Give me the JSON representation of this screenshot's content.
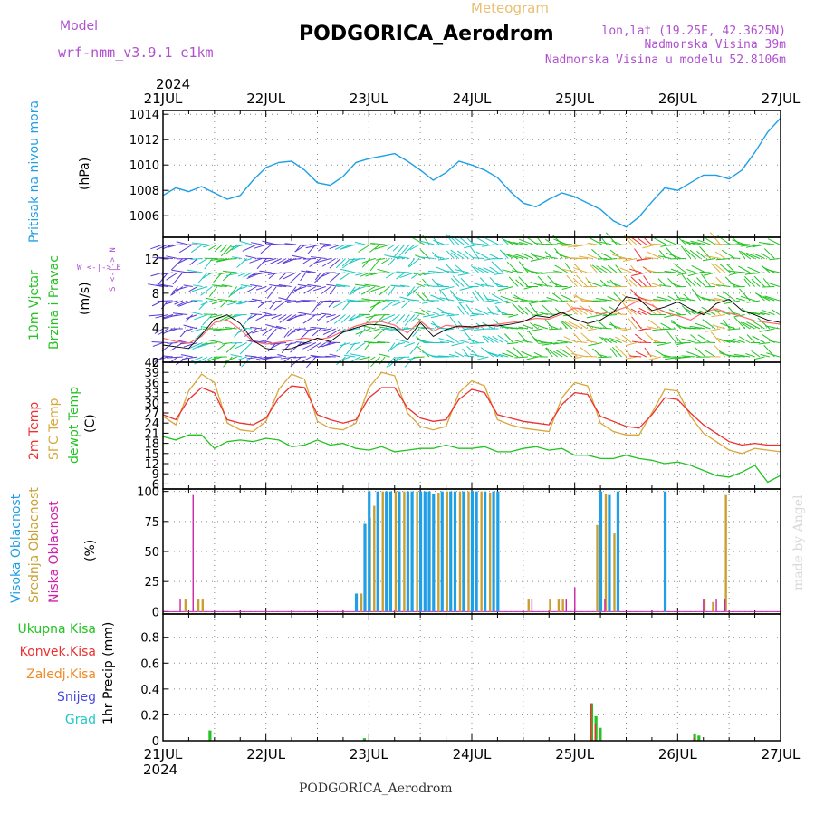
{
  "header": {
    "model_label": "Model",
    "model_name": "wrf-nmm_v3.9.1  e1km",
    "product": "Meteogram",
    "station": "PODGORICA_Aerodrom",
    "coords": "lon,lat (19.25E, 42.3625N)",
    "altitude": "Nadmorska Visina 39m",
    "model_altitude": "Nadmorska Visina u modelu 52.8106m",
    "year_top": "2024",
    "year_bottom": "2024",
    "footer_station": "PODGORICA_Aerodrom",
    "credit": "made by Angel"
  },
  "colors": {
    "pressure": "#1e9fe6",
    "wind_label": "#22c322",
    "t2m": "#ee3030",
    "sfc": "#d8a83c",
    "dew": "#22c322",
    "cloud_high": "#1e9fe6",
    "cloud_mid": "#c8a032",
    "cloud_low": "#cc22aa",
    "precip_total": "#22c322",
    "precip_conv": "#ee3030",
    "precip_frozen": "#f08a28",
    "precip_snow": "#4848e0",
    "precip_graupel": "#22c8c8",
    "title_purple": "#b050d0",
    "meteogram_orange": "#e8c070"
  },
  "axis": {
    "dates": [
      "21JUL",
      "22JUL",
      "23JUL",
      "24JUL",
      "25JUL",
      "26JUL",
      "27JUL"
    ]
  },
  "panels": {
    "pressure": {
      "label": "Pritisak na nivou mora",
      "unit": "(hPa)"
    },
    "wind": {
      "label1": "10m Vjetar",
      "label2": "Brzina i Pravac",
      "unit": "(m/s)",
      "compass": "W <-|-> E",
      "compass2": "S <-|-> N"
    },
    "temp": {
      "label_t2m": "2m Temp",
      "label_sfc": "SFC Temp",
      "label_dew": "dewpt Temp",
      "unit": "(C)"
    },
    "cloud": {
      "label_high": "Visoka Oblacnost",
      "label_mid": "Srednja Oblacnost",
      "label_low": "Niska Oblacnost",
      "unit": "(%)"
    },
    "precip": {
      "label_total": "Ukupna Kisa",
      "label_conv": "Konvek.Kisa",
      "label_frozen": "Zaledj.Kisa",
      "label_snow": "Snijeg",
      "label_graupel": "Grad",
      "unit": "1hr Precip (mm)"
    }
  },
  "chart_data": [
    {
      "type": "line",
      "name": "pressure",
      "ylim": [
        1004.3,
        1014.3
      ],
      "yticks": [
        "1006",
        "1008",
        "1010",
        "1012",
        "1014"
      ],
      "ytick_values": [
        1006,
        1008,
        1010,
        1012,
        1014
      ],
      "x": [
        0,
        3,
        6,
        9,
        12,
        15,
        18,
        21,
        24,
        27,
        30,
        33,
        36,
        39,
        42,
        45,
        48,
        51,
        54,
        57,
        60,
        63,
        66,
        69,
        72,
        75,
        78,
        81,
        84,
        87,
        90,
        93,
        96,
        99,
        102,
        105,
        108,
        111,
        114,
        117,
        120,
        123,
        126,
        129,
        132,
        135,
        138,
        141,
        144
      ],
      "series": [
        {
          "values": [
            1007.6,
            1008.2,
            1007.9,
            1008.3,
            1007.8,
            1007.3,
            1007.6,
            1008.8,
            1009.8,
            1010.2,
            1010.3,
            1009.6,
            1008.6,
            1008.4,
            1009.1,
            1010.2,
            1010.5,
            1010.7,
            1010.9,
            1010.3,
            1009.6,
            1008.8,
            1009.4,
            1010.3,
            1010.0,
            1009.6,
            1009.0,
            1007.9,
            1007.0,
            1006.7,
            1007.3,
            1007.8,
            1007.5,
            1007.0,
            1006.5,
            1005.6,
            1005.1,
            1005.9,
            1007.1,
            1008.2,
            1008.0,
            1008.6,
            1009.2,
            1009.2,
            1008.9,
            1009.6,
            1011.0,
            1012.6,
            1013.7
          ]
        }
      ]
    },
    {
      "type": "line",
      "name": "wind",
      "ylim": [
        0,
        14.5
      ],
      "yticks": [
        "0",
        "4",
        "8",
        "12"
      ],
      "ytick_values": [
        0,
        4,
        8,
        12
      ],
      "x": [
        0,
        3,
        6,
        9,
        12,
        15,
        18,
        21,
        24,
        27,
        30,
        33,
        36,
        39,
        42,
        45,
        48,
        51,
        54,
        57,
        60,
        63,
        66,
        69,
        72,
        75,
        78,
        81,
        84,
        87,
        90,
        93,
        96,
        99,
        102,
        105,
        108,
        111,
        114,
        117,
        120,
        123,
        126,
        129,
        132,
        135,
        138,
        141,
        144
      ],
      "series": [
        {
          "values": [
            2.8,
            2.4,
            2.2,
            3.0,
            4.6,
            4.9,
            3.8,
            2.4,
            2.1,
            2.3,
            2.5,
            2.8,
            2.6,
            2.9,
            3.6,
            4.2,
            4.6,
            4.7,
            4.3,
            3.4,
            4.8,
            3.6,
            4.3,
            4.1,
            4.0,
            4.2,
            4.4,
            4.6,
            4.8,
            5.1,
            5.0,
            5.6,
            6.3,
            6.1,
            5.6,
            5.9,
            6.4,
            7.2,
            6.6,
            5.8,
            5.4,
            4.9,
            5.8,
            6.2,
            5.7,
            5.3,
            4.8,
            4.6,
            4.4
          ]
        },
        {
          "values": [
            2.0,
            1.8,
            1.6,
            3.2,
            5.0,
            5.5,
            4.5,
            2.5,
            1.6,
            1.4,
            1.6,
            2.2,
            2.8,
            2.4,
            3.5,
            4.0,
            4.4,
            4.3,
            4.0,
            2.6,
            4.6,
            3.0,
            3.8,
            4.2,
            4.1,
            4.3,
            4.2,
            4.4,
            4.7,
            5.4,
            5.2,
            5.8,
            5.0,
            4.5,
            4.9,
            5.8,
            7.6,
            7.3,
            6.0,
            6.4,
            7.0,
            6.2,
            5.5,
            6.8,
            7.3,
            6.0,
            5.5,
            4.9,
            4.6
          ]
        }
      ]
    },
    {
      "type": "line",
      "name": "temperature",
      "ylim": [
        4.5,
        42
      ],
      "yticks": [
        "6",
        "9",
        "12",
        "15",
        "18",
        "21",
        "24",
        "27",
        "30",
        "33",
        "36",
        "39",
        "42"
      ],
      "ytick_values": [
        6,
        9,
        12,
        15,
        18,
        21,
        24,
        27,
        30,
        33,
        36,
        39,
        42
      ],
      "x": [
        0,
        3,
        6,
        9,
        12,
        15,
        18,
        21,
        24,
        27,
        30,
        33,
        36,
        39,
        42,
        45,
        48,
        51,
        54,
        57,
        60,
        63,
        66,
        69,
        72,
        75,
        78,
        81,
        84,
        87,
        90,
        93,
        96,
        99,
        102,
        105,
        108,
        111,
        114,
        117,
        120,
        123,
        126,
        129,
        132,
        135,
        138,
        141,
        144
      ],
      "series": [
        {
          "name": "2m Temp",
          "values": [
            26.5,
            25.0,
            31.0,
            34.5,
            33.0,
            25.0,
            24.0,
            23.5,
            25.5,
            31.5,
            35.0,
            34.5,
            26.5,
            25.0,
            24.0,
            25.0,
            31.5,
            34.5,
            34.5,
            28.5,
            25.5,
            24.5,
            25.0,
            31.0,
            34.0,
            33.0,
            26.5,
            25.5,
            24.5,
            24.0,
            23.5,
            29.5,
            33.0,
            32.5,
            26.0,
            24.5,
            23.0,
            22.5,
            26.5,
            31.5,
            31.0,
            27.0,
            23.5,
            21.0,
            18.5,
            17.5,
            18.0,
            17.5,
            17.5
          ]
        },
        {
          "name": "SFC Temp",
          "values": [
            26.0,
            23.5,
            33.5,
            38.5,
            36.0,
            24.0,
            22.0,
            21.5,
            24.5,
            34.0,
            38.5,
            37.0,
            24.5,
            22.5,
            22.0,
            24.0,
            34.5,
            39.0,
            38.0,
            27.0,
            23.0,
            22.0,
            23.0,
            33.0,
            36.5,
            35.0,
            25.0,
            23.5,
            22.5,
            22.0,
            21.5,
            31.5,
            36.0,
            35.0,
            24.0,
            21.5,
            20.5,
            20.5,
            27.0,
            34.0,
            33.5,
            26.0,
            21.0,
            18.5,
            16.0,
            15.0,
            16.5,
            16.0,
            15.5
          ]
        },
        {
          "name": "dewpt Temp",
          "values": [
            20.0,
            19.0,
            20.5,
            20.5,
            16.5,
            18.5,
            19.0,
            18.5,
            19.5,
            19.0,
            17.0,
            17.5,
            19.0,
            17.5,
            18.0,
            16.5,
            16.0,
            17.0,
            15.5,
            16.0,
            16.5,
            16.5,
            17.5,
            16.5,
            16.5,
            17.0,
            15.5,
            15.5,
            16.5,
            17.0,
            16.0,
            16.5,
            14.5,
            14.5,
            13.5,
            13.5,
            14.5,
            13.5,
            13.0,
            12.0,
            12.5,
            11.5,
            10.0,
            8.5,
            8.0,
            9.5,
            11.5,
            6.5,
            8.5
          ]
        }
      ]
    },
    {
      "type": "bar",
      "name": "cloud",
      "ylim": [
        -2,
        102
      ],
      "yticks": [
        "0",
        "25",
        "50",
        "75",
        "100"
      ],
      "ytick_values": [
        0,
        25,
        50,
        75,
        100
      ],
      "bars_high": [
        [
          45,
          15
        ],
        [
          47,
          73
        ],
        [
          48,
          100
        ],
        [
          50,
          100
        ],
        [
          52,
          100
        ],
        [
          53,
          100
        ],
        [
          55,
          100
        ],
        [
          57,
          100
        ],
        [
          58,
          100
        ],
        [
          60,
          100
        ],
        [
          61,
          100
        ],
        [
          62,
          100
        ],
        [
          63,
          98
        ],
        [
          65,
          100
        ],
        [
          67,
          100
        ],
        [
          68,
          100
        ],
        [
          70,
          100
        ],
        [
          72,
          100
        ],
        [
          73,
          100
        ],
        [
          75,
          100
        ],
        [
          77,
          100
        ],
        [
          78,
          100
        ],
        [
          102,
          100
        ],
        [
          104,
          97
        ],
        [
          106,
          100
        ],
        [
          117,
          100
        ]
      ],
      "bars_mid": [
        [
          5,
          10
        ],
        [
          8,
          10
        ],
        [
          9,
          10
        ],
        [
          46,
          15
        ],
        [
          48,
          78
        ],
        [
          49,
          88
        ],
        [
          51,
          100
        ],
        [
          54,
          100
        ],
        [
          56,
          100
        ],
        [
          59,
          100
        ],
        [
          64,
          99
        ],
        [
          66,
          100
        ],
        [
          69,
          100
        ],
        [
          71,
          100
        ],
        [
          74,
          100
        ],
        [
          76,
          99
        ],
        [
          85,
          10
        ],
        [
          90,
          10
        ],
        [
          92,
          10
        ],
        [
          93,
          10
        ],
        [
          101,
          72
        ],
        [
          103,
          98
        ],
        [
          105,
          65
        ],
        [
          126,
          10
        ],
        [
          128,
          8
        ],
        [
          131,
          97
        ]
      ],
      "bars_low": [
        [
          4,
          10
        ],
        [
          7,
          97
        ],
        [
          86,
          10
        ],
        [
          94,
          10
        ],
        [
          96,
          20
        ],
        [
          103,
          10
        ],
        [
          126,
          10
        ],
        [
          129,
          10
        ],
        [
          131,
          10
        ]
      ]
    },
    {
      "type": "bar",
      "name": "precip",
      "ylim": [
        0,
        0.98
      ],
      "yticks": [
        "0",
        "0.2",
        "0.4",
        "0.6",
        "0.8"
      ],
      "ytick_values": [
        0,
        0.2,
        0.4,
        0.6,
        0.8
      ],
      "bars_total": [
        [
          11,
          0.08
        ],
        [
          47,
          0.02
        ],
        [
          100,
          0.29
        ],
        [
          101,
          0.19
        ],
        [
          102,
          0.1
        ],
        [
          124,
          0.05
        ],
        [
          125,
          0.04
        ]
      ],
      "bars_conv": [
        [
          100,
          0.29
        ],
        [
          101,
          0.13
        ],
        [
          124,
          0.02
        ]
      ]
    }
  ]
}
